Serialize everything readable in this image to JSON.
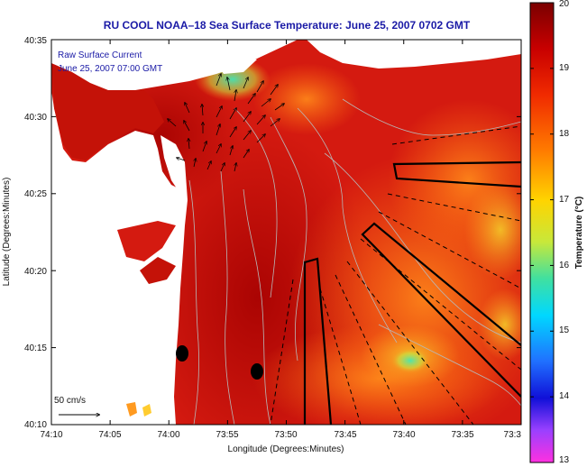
{
  "title": "RU COOL   NOAA–18  Sea Surface Temperature:  June 25, 2007 0702 GMT",
  "legend": {
    "line1": "Raw Surface Current",
    "line2": "June 25, 2007 07:00 GMT"
  },
  "scale_label": "50 cm/s",
  "x_axis": {
    "label": "Longitude (Degrees:Minutes)",
    "ticks": [
      "74:10",
      "74:05",
      "74:00",
      "73:55",
      "73:50",
      "73:45",
      "73:40",
      "73:35",
      "73:3"
    ]
  },
  "y_axis": {
    "label": "Latitude (Degrees:Minutes)",
    "ticks": [
      "40:35",
      "40:30",
      "40:25",
      "40:20",
      "40:15",
      "40:10"
    ]
  },
  "colorbar": {
    "label": "Temperature (°C)",
    "ticks": [
      "20",
      "19",
      "18",
      "17",
      "16",
      "15",
      "14",
      "13"
    ],
    "min": 13,
    "max": 20
  },
  "colors": {
    "water_base": "#d41a10",
    "land": "#ffffff",
    "contour": "#b8b8b8",
    "title_text": "#1a1aa6"
  }
}
